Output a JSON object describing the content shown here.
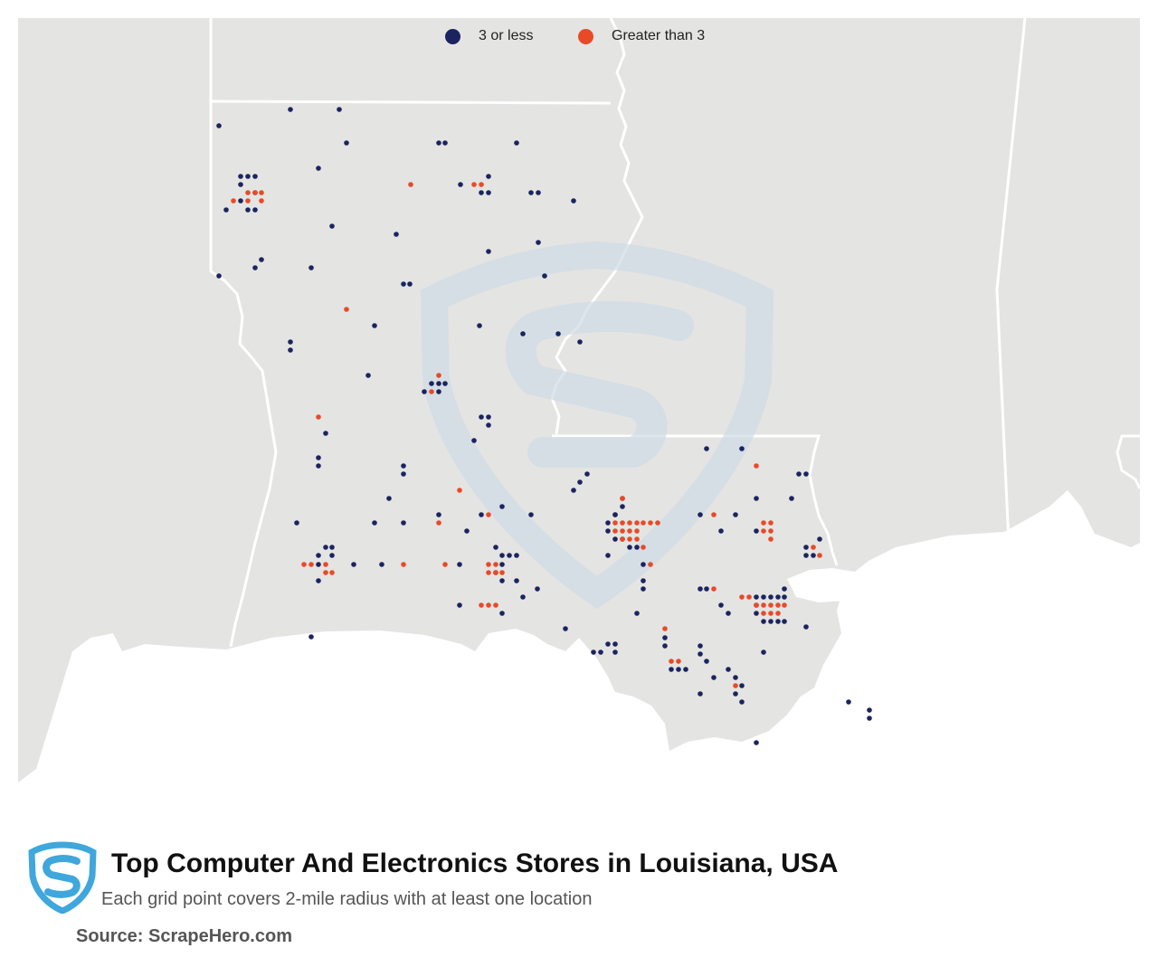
{
  "legend": {
    "low_label": "3 or less",
    "high_label": "Greater than 3"
  },
  "colors": {
    "low": "#1b2460",
    "high": "#e84a27",
    "land": "#e4e4e2",
    "water": "#ffffff",
    "border": "#ffffff",
    "watermark": "#cfdce6",
    "logo": "#3fa7dc"
  },
  "title": "Top Computer And Electronics Stores in Louisiana, USA",
  "subtitle": "Each grid point covers 2-mile radius with at least one location",
  "source": "Source: ScrapeHero.com"
}
